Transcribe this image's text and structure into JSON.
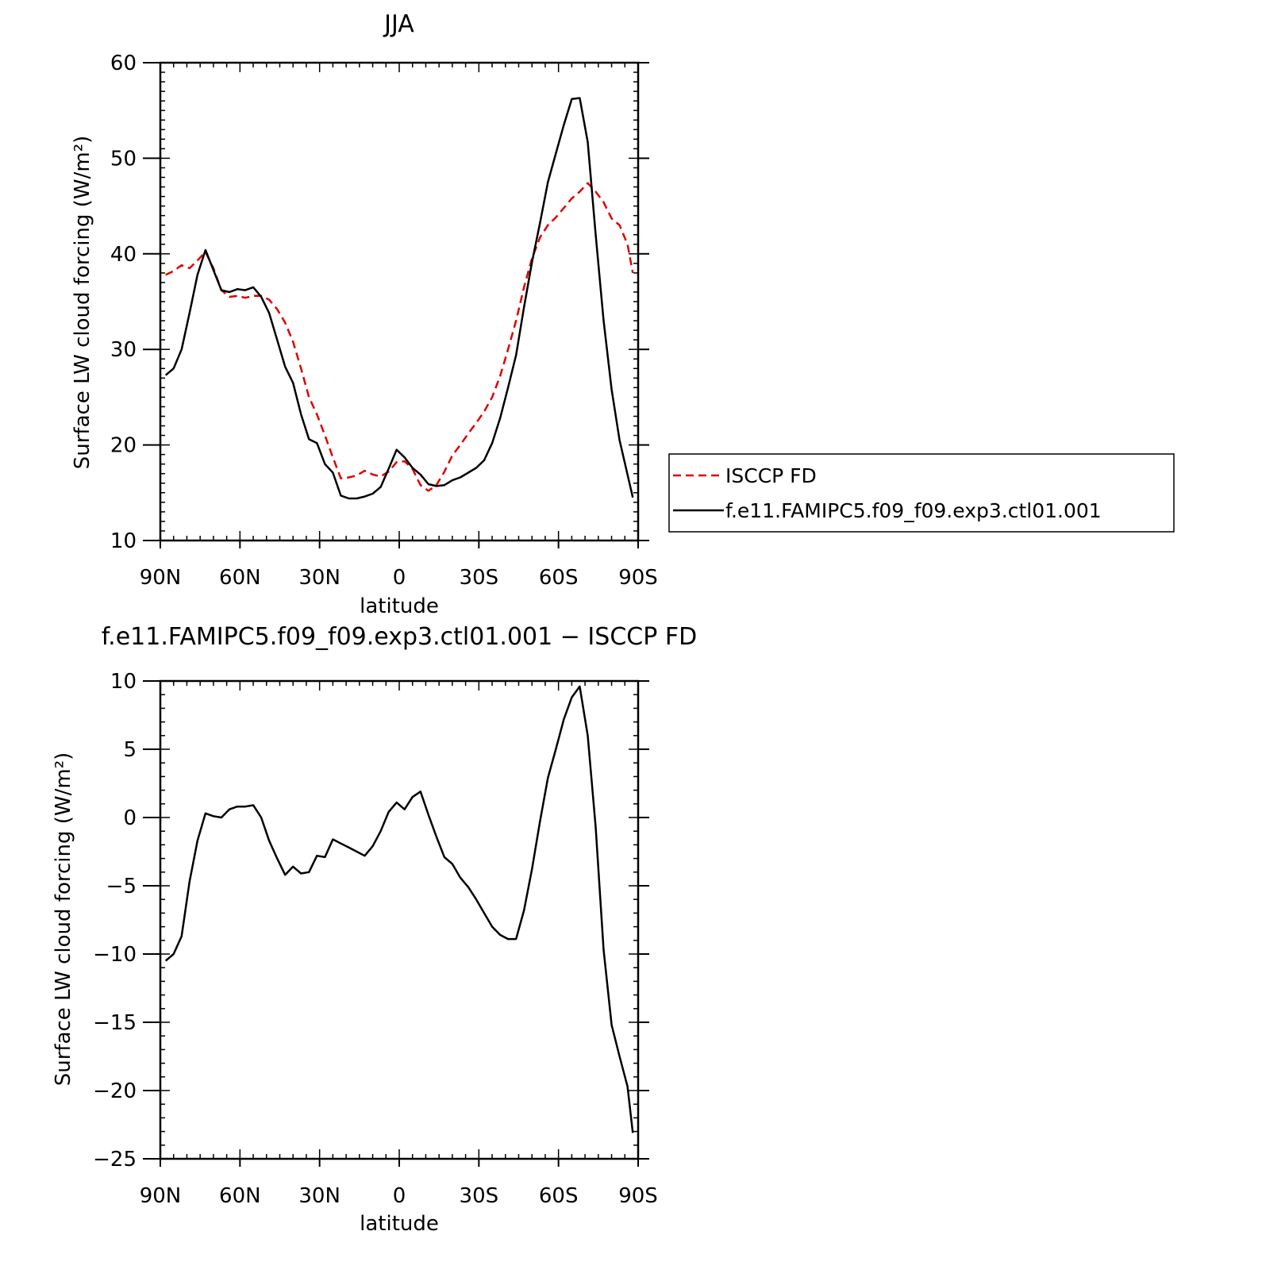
{
  "chart_data": [
    {
      "type": "line",
      "title": "JJA",
      "xlabel": "latitude",
      "ylabel": "Surface LW cloud forcing (W/m²)",
      "xlim": [
        90,
        -90
      ],
      "ylim": [
        10,
        60
      ],
      "x_ticks": [
        90,
        60,
        30,
        0,
        -30,
        -60,
        -90
      ],
      "x_tick_labels": [
        "90N",
        "60N",
        "30N",
        "0",
        "30S",
        "60S",
        "90S"
      ],
      "y_ticks": [
        10,
        20,
        30,
        40,
        50,
        60
      ],
      "y_tick_labels": [
        "10",
        "20",
        "30",
        "40",
        "50",
        "60"
      ],
      "legend": {
        "position": "right"
      },
      "series": [
        {
          "name": "ISCCP FD",
          "color": "#e00000",
          "dash": "dashed",
          "x": [
            88,
            85,
            82,
            79,
            76,
            73,
            70,
            67,
            64,
            61,
            58,
            55,
            52,
            49,
            46,
            43,
            40,
            37,
            34,
            31,
            28,
            25,
            22,
            19,
            16,
            13,
            10,
            7,
            4,
            1,
            -2,
            -5,
            -8,
            -11,
            -14,
            -17,
            -20,
            -23,
            -26,
            -29,
            -32,
            -35,
            -38,
            -41,
            -44,
            -47,
            -50,
            -53,
            -56,
            -59,
            -62,
            -65,
            -68,
            -71,
            -74,
            -77,
            -80,
            -83,
            -86,
            -88
          ],
          "y": [
            37.8,
            38.2,
            38.8,
            38.5,
            39.3,
            40.2,
            38.5,
            36.2,
            35.5,
            35.6,
            35.4,
            35.6,
            35.6,
            35.2,
            34.2,
            32.8,
            30.8,
            28.0,
            25.0,
            23.2,
            21.0,
            18.7,
            16.5,
            16.6,
            16.8,
            17.3,
            16.9,
            16.7,
            17.2,
            18.2,
            18.3,
            17.5,
            15.8,
            15.2,
            15.8,
            17.2,
            18.9,
            20.0,
            21.2,
            22.3,
            23.5,
            25.0,
            27.2,
            30.0,
            33.0,
            36.5,
            39.5,
            41.7,
            43.0,
            43.8,
            44.8,
            45.8,
            46.5,
            47.4,
            46.5,
            45.4,
            43.7,
            43.0,
            41.0,
            38.0
          ]
        },
        {
          "name": "f.e11.FAMIPC5.f09_f09.exp3.ctl01.001",
          "color": "#000000",
          "dash": "solid",
          "x": [
            88,
            85,
            82,
            79,
            76,
            73,
            70,
            67,
            64,
            61,
            58,
            55,
            52,
            49,
            46,
            43,
            40,
            37,
            34,
            31,
            28,
            25,
            22,
            19,
            16,
            13,
            10,
            7,
            4,
            1,
            -2,
            -5,
            -8,
            -11,
            -14,
            -17,
            -20,
            -23,
            -26,
            -29,
            -32,
            -35,
            -38,
            -41,
            -44,
            -47,
            -50,
            -53,
            -56,
            -59,
            -62,
            -65,
            -68,
            -71,
            -74,
            -77,
            -80,
            -83,
            -86,
            -88
          ],
          "y": [
            27.3,
            28.0,
            30.0,
            33.8,
            37.8,
            40.4,
            38.3,
            36.2,
            36.0,
            36.3,
            36.2,
            36.5,
            35.5,
            33.8,
            31.0,
            28.2,
            26.5,
            23.2,
            20.6,
            20.2,
            18.0,
            17.1,
            14.7,
            14.4,
            14.4,
            14.6,
            14.9,
            15.6,
            17.5,
            19.5,
            18.7,
            17.6,
            16.9,
            15.9,
            15.7,
            15.8,
            16.3,
            16.6,
            17.1,
            17.6,
            18.4,
            20.2,
            22.8,
            26.0,
            29.4,
            34.4,
            39.1,
            43.2,
            47.5,
            50.5,
            53.5,
            56.2,
            56.3,
            51.7,
            42.0,
            33.0,
            25.8,
            20.5,
            16.9,
            14.5
          ]
        }
      ]
    },
    {
      "type": "line",
      "title": "f.e11.FAMIPC5.f09_f09.exp3.ctl01.001 − ISCCP FD",
      "xlabel": "latitude",
      "ylabel": "Surface LW cloud forcing (W/m²)",
      "xlim": [
        90,
        -90
      ],
      "ylim": [
        -25,
        10
      ],
      "x_ticks": [
        90,
        60,
        30,
        0,
        -30,
        -60,
        -90
      ],
      "x_tick_labels": [
        "90N",
        "60N",
        "30N",
        "0",
        "30S",
        "60S",
        "90S"
      ],
      "y_ticks": [
        -25,
        -20,
        -15,
        -10,
        -5,
        0,
        5,
        10
      ],
      "y_tick_labels": [
        "−25",
        "−20",
        "−15",
        "−10",
        "−5",
        "0",
        "5",
        "10"
      ],
      "series": [
        {
          "color": "#000000",
          "dash": "solid",
          "x": [
            88,
            85,
            82,
            79,
            76,
            73,
            70,
            67,
            64,
            61,
            58,
            55,
            52,
            49,
            46,
            43,
            40,
            37,
            34,
            31,
            28,
            25,
            22,
            19,
            16,
            13,
            10,
            7,
            4,
            1,
            -2,
            -5,
            -8,
            -11,
            -14,
            -17,
            -20,
            -23,
            -26,
            -29,
            -32,
            -35,
            -38,
            -41,
            -44,
            -47,
            -50,
            -53,
            -56,
            -59,
            -62,
            -65,
            -68,
            -71,
            -74,
            -77,
            -80,
            -83,
            -86,
            -88
          ],
          "y": [
            -10.5,
            -10.0,
            -8.7,
            -4.7,
            -1.7,
            0.3,
            0.1,
            0.0,
            0.6,
            0.8,
            0.8,
            0.9,
            0.0,
            -1.7,
            -3.0,
            -4.2,
            -3.6,
            -4.1,
            -4.0,
            -2.8,
            -2.9,
            -1.6,
            -1.9,
            -2.2,
            -2.5,
            -2.8,
            -2.1,
            -1.0,
            0.4,
            1.1,
            0.6,
            1.5,
            1.9,
            0.2,
            -1.4,
            -2.9,
            -3.4,
            -4.4,
            -5.1,
            -6.0,
            -7.0,
            -8.0,
            -8.6,
            -8.9,
            -8.9,
            -6.8,
            -3.8,
            -0.3,
            2.9,
            5.0,
            7.2,
            8.8,
            9.6,
            6.0,
            -0.7,
            -9.7,
            -15.2,
            -17.5,
            -19.7,
            -23.1
          ]
        }
      ]
    }
  ]
}
